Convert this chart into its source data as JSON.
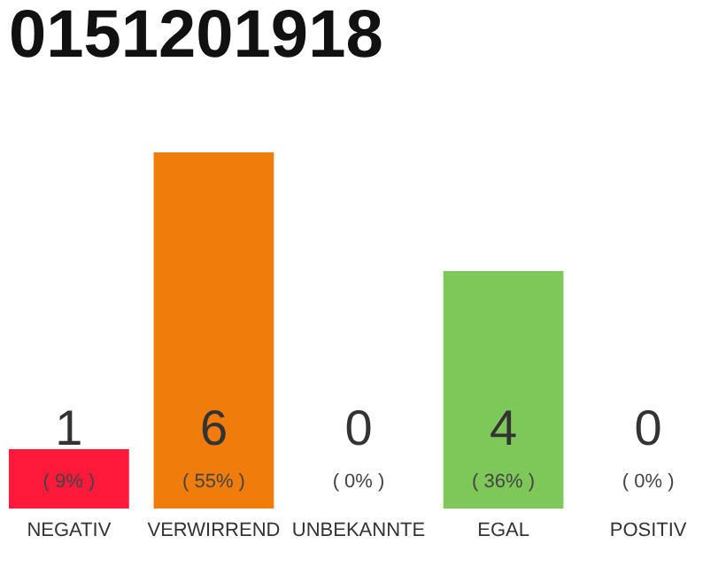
{
  "chart_data": {
    "type": "bar",
    "title": "0151201918",
    "categories": [
      "NEGATIV",
      "VERWIRREND",
      "UNBEKANNTE",
      "EGAL",
      "POSITIV"
    ],
    "values": [
      1,
      6,
      0,
      4,
      0
    ],
    "colors": [
      "#ff1a3c",
      "#f07d0b",
      "#bbbbbb",
      "#7ec85a",
      "#4caf50"
    ],
    "value_labels": [
      "1",
      "6",
      "0",
      "4",
      "0"
    ],
    "annotations": [
      {
        "text": "( 9% )",
        "x": "NEGATIV",
        "y": 0
      },
      {
        "text": "( 55% )",
        "x": "VERWIRREND",
        "y": 0
      },
      {
        "text": "( 0% )",
        "x": "UNBEKANNTE",
        "y": 0
      },
      {
        "text": "( 36% )",
        "x": "EGAL",
        "y": 0
      },
      {
        "text": "( 0% )",
        "x": "POSITIV",
        "y": 0
      }
    ]
  }
}
